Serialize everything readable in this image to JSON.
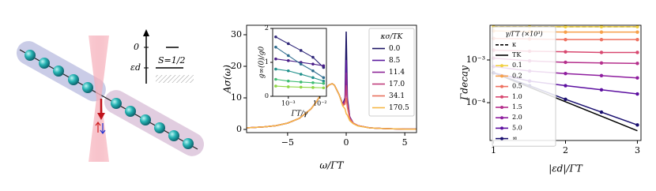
{
  "illustration": {
    "labels": [
      "0",
      "εd",
      "S=1/2"
    ]
  },
  "chart_data": [
    {
      "type": "line",
      "xlabel": "ω/ΓT",
      "ylabel": "Aσ(ω)",
      "x": [
        -8.5,
        -7,
        -6,
        -5,
        -4,
        -3,
        -2.5,
        -2,
        -1.5,
        -1.2,
        -1,
        -0.6,
        -0.3,
        -0.1,
        0,
        0.1,
        0.3,
        0.6,
        1,
        2,
        3,
        4,
        5,
        6
      ],
      "xlim": [
        -8.5,
        6
      ],
      "ylim": [
        -1,
        33
      ],
      "xticks": [
        {
          "value": -5,
          "label": "−5"
        },
        0,
        5
      ],
      "yticks": [
        0,
        10,
        20,
        30
      ],
      "legend": "upper right",
      "legend_title": "κσ/TK",
      "series": [
        {
          "name": "0.0",
          "color": "#1b1464",
          "values": [
            0.5,
            0.8,
            1.2,
            2,
            3.5,
            6.5,
            9,
            12,
            14,
            14.5,
            14,
            11,
            8,
            10,
            31,
            10,
            4,
            2,
            1.2,
            0.5,
            0.3,
            0.2,
            0.1,
            0.1
          ]
        },
        {
          "name": "8.5",
          "color": "#5b1a9e",
          "values": [
            0.5,
            0.8,
            1.2,
            2,
            3.5,
            6.5,
            9,
            12,
            14,
            14.5,
            14,
            11,
            8,
            9.5,
            22,
            9,
            4,
            2,
            1.2,
            0.5,
            0.3,
            0.2,
            0.1,
            0.1
          ]
        },
        {
          "name": "11.4",
          "color": "#8c2496",
          "values": [
            0.5,
            0.8,
            1.2,
            2,
            3.5,
            6.5,
            9,
            12,
            14,
            14.5,
            14,
            11,
            8,
            9,
            18,
            8.5,
            3.8,
            2,
            1.2,
            0.5,
            0.3,
            0.2,
            0.1,
            0.1
          ]
        },
        {
          "name": "17.0",
          "color": "#c03f7c",
          "values": [
            0.5,
            0.8,
            1.2,
            2,
            3.5,
            6.5,
            9,
            12,
            14,
            14.5,
            14,
            11,
            7.8,
            8.5,
            14,
            8,
            3.6,
            2,
            1.2,
            0.5,
            0.3,
            0.2,
            0.1,
            0.1
          ]
        },
        {
          "name": "34.1",
          "color": "#e8705c",
          "values": [
            0.5,
            0.8,
            1.2,
            2,
            3.5,
            6.5,
            9,
            12,
            14,
            14.5,
            14,
            11,
            7.5,
            8,
            10,
            7,
            3.3,
            2,
            1.2,
            0.5,
            0.3,
            0.2,
            0.1,
            0.1
          ]
        },
        {
          "name": "170.5",
          "color": "#f6b746",
          "values": [
            0.5,
            0.8,
            1.2,
            2,
            3.5,
            6.5,
            9,
            12,
            14,
            14.5,
            14,
            11,
            7.5,
            6.5,
            5,
            4.5,
            2.8,
            1.8,
            1.1,
            0.5,
            0.3,
            0.2,
            0.1,
            0.1
          ]
        }
      ]
    },
    {
      "type": "line",
      "xlabel": "ΓT/γ",
      "ylabel": "g∞(0)/g0",
      "xlog": true,
      "x": [
        0.0004,
        0.001,
        0.0025,
        0.006,
        0.013
      ],
      "xlim": [
        0.00032,
        0.016
      ],
      "ylim": [
        0,
        2
      ],
      "xticks": [
        {
          "value": 0.001,
          "label": "10⁻³"
        },
        {
          "value": 0.01,
          "label": "10⁻²"
        }
      ],
      "yticks": [
        0,
        1,
        2
      ],
      "series": [
        {
          "color": "#30287a",
          "marker": true,
          "values": [
            1.75,
            1.55,
            1.35,
            1.15,
            0.85
          ]
        },
        {
          "color": "#4a1d88",
          "marker": true,
          "values": [
            1.1,
            1.05,
            1.0,
            0.95,
            0.9
          ]
        },
        {
          "color": "#2f6d8e",
          "marker": true,
          "values": [
            1.45,
            1.2,
            0.95,
            0.75,
            0.55
          ]
        },
        {
          "color": "#21918c",
          "marker": true,
          "values": [
            0.8,
            0.75,
            0.65,
            0.55,
            0.45
          ]
        },
        {
          "color": "#3fbc73",
          "marker": true,
          "values": [
            0.5,
            0.45,
            0.42,
            0.4,
            0.38
          ]
        },
        {
          "color": "#8fd744",
          "marker": true,
          "values": [
            0.3,
            0.28,
            0.27,
            0.26,
            0.25
          ]
        }
      ]
    },
    {
      "type": "line",
      "xlabel": "|εd|/ΓT",
      "ylabel": "Γdecay",
      "ylog": true,
      "x": [
        1,
        1.5,
        2,
        2.5,
        3
      ],
      "xlim": [
        0.95,
        3.05
      ],
      "ylim": [
        1.3e-05,
        0.0065
      ],
      "xticks": [
        1,
        2,
        3
      ],
      "yticks": [
        {
          "value": 0.0001,
          "label": "10⁻⁴"
        },
        {
          "value": 0.001,
          "label": "10⁻³"
        }
      ],
      "legend": "upper left",
      "legend_title": "γ/ΓT (×10³)",
      "series": [
        {
          "name": "κ",
          "color": "#000000",
          "dash": true,
          "values": [
            0.006,
            0.006,
            0.006,
            0.006,
            0.006
          ]
        },
        {
          "name": "TK",
          "color": "#000000",
          "values": [
            0.0005,
            0.00023,
            0.000105,
            4.8e-05,
            2.2e-05
          ]
        },
        {
          "name": "0.1",
          "color": "#f0d040",
          "marker": true,
          "values": [
            0.006,
            0.006,
            0.006,
            0.006,
            0.006
          ]
        },
        {
          "name": "0.2",
          "color": "#f7a04a",
          "marker": true,
          "values": [
            0.0048,
            0.0046,
            0.0045,
            0.0045,
            0.0045
          ]
        },
        {
          "name": "0.5",
          "color": "#ee7060",
          "marker": true,
          "values": [
            0.0032,
            0.0031,
            0.003,
            0.003,
            0.003
          ]
        },
        {
          "name": "1.0",
          "color": "#d84870",
          "marker": true,
          "values": [
            0.0017,
            0.0016,
            0.00155,
            0.0015,
            0.0015
          ]
        },
        {
          "name": "1.5",
          "color": "#b52f8c",
          "marker": true,
          "values": [
            0.0011,
            0.00095,
            0.00088,
            0.00085,
            0.00083
          ]
        },
        {
          "name": "2.0",
          "color": "#8e1d9e",
          "marker": true,
          "values": [
            0.0007,
            0.00055,
            0.00048,
            0.00043,
            0.00038
          ]
        },
        {
          "name": "5.0",
          "color": "#5c0fa0",
          "marker": true,
          "values": [
            0.0005,
            0.00032,
            0.00025,
            0.0002,
            0.00016
          ]
        },
        {
          "name": "∞",
          "color": "#1a1070",
          "marker": true,
          "values": [
            0.0005,
            0.00025,
            0.00012,
            6e-05,
            3e-05
          ]
        }
      ]
    }
  ]
}
